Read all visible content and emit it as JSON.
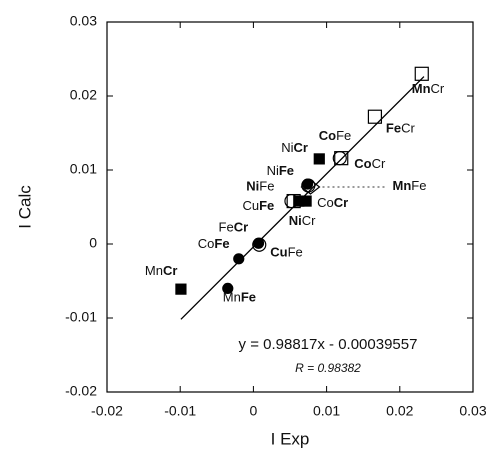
{
  "chart_data": {
    "type": "scatter",
    "x_label": "I Exp",
    "y_label": "I Calc",
    "xlim": [
      -0.02,
      0.03
    ],
    "ylim": [
      -0.02,
      0.03
    ],
    "xticks": [
      -0.02,
      -0.01,
      0,
      0.01,
      0.02,
      0.03
    ],
    "yticks": [
      -0.02,
      -0.01,
      0,
      0.01,
      0.02,
      0.03
    ],
    "color": "#000000",
    "fit": {
      "slope": 0.98817,
      "intercept": -0.00039557,
      "xlim": [
        -0.0099,
        0.0233
      ]
    },
    "equation": "y = 0.98817x - 0.00039557",
    "r_text": "R = 0.98382",
    "points": [
      {
        "x": -0.0099,
        "y": -0.0061,
        "marker": "square-filled",
        "label": [
          {
            "text": "Mn",
            "bold": false
          },
          {
            "text": "Cr",
            "bold": true
          }
        ]
      },
      {
        "x": -0.0035,
        "y": -0.006,
        "marker": "circle-filled",
        "label": [
          {
            "text": "Mn",
            "bold": false
          },
          {
            "text": "Fe",
            "bold": true
          }
        ]
      },
      {
        "x": -0.002,
        "y": -0.002,
        "marker": "circle-filled",
        "label": [
          {
            "text": "Co",
            "bold": false
          },
          {
            "text": "Fe",
            "bold": true
          }
        ]
      },
      {
        "x": 0.0007,
        "y": 0.0001,
        "marker": "circle-filled",
        "label": [
          {
            "text": "Fe",
            "bold": false
          },
          {
            "text": "Cr",
            "bold": true
          }
        ]
      },
      {
        "x": 0.0008,
        "y": -0.0001,
        "marker": "circle-open",
        "label": [
          {
            "text": "Cu",
            "bold": true
          },
          {
            "text": "Fe",
            "bold": false
          }
        ]
      },
      {
        "x": 0.0055,
        "y": 0.0058,
        "marker": "square-open"
      },
      {
        "x": 0.0052,
        "y": 0.0058,
        "marker": "circle-open",
        "label": [
          {
            "text": "Cu",
            "bold": false
          },
          {
            "text": "Fe",
            "bold": true
          }
        ]
      },
      {
        "x": 0.0062,
        "y": 0.0058,
        "marker": "square-filled",
        "label": [
          {
            "text": "Ni",
            "bold": true
          },
          {
            "text": "Cr",
            "bold": false
          }
        ]
      },
      {
        "x": 0.0072,
        "y": 0.0058,
        "marker": "square-filled",
        "label": [
          {
            "text": "Co",
            "bold": false
          },
          {
            "text": "Cr",
            "bold": true
          }
        ]
      },
      {
        "x": 0.0074,
        "y": 0.0081,
        "marker": "circle-filled",
        "label": [
          {
            "text": "Ni",
            "bold": false
          },
          {
            "text": "Fe",
            "bold": true
          }
        ]
      },
      {
        "x": 0.0078,
        "y": 0.0077,
        "marker": "diamond-open",
        "label": [
          {
            "text": "Mn",
            "bold": true
          },
          {
            "text": "Fe",
            "bold": false
          }
        ]
      },
      {
        "x": 0.0075,
        "y": 0.0079,
        "marker": "circle-open",
        "label": [
          {
            "text": "Ni",
            "bold": true
          },
          {
            "text": "Fe",
            "bold": false
          }
        ]
      },
      {
        "x": 0.009,
        "y": 0.0115,
        "marker": "square-filled",
        "label": [
          {
            "text": "Ni",
            "bold": false
          },
          {
            "text": "Cr",
            "bold": true
          }
        ]
      },
      {
        "x": 0.0118,
        "y": 0.0116,
        "marker": "circle-open",
        "label": [
          {
            "text": "Co",
            "bold": true
          },
          {
            "text": "Fe",
            "bold": false
          }
        ]
      },
      {
        "x": 0.012,
        "y": 0.0116,
        "marker": "square-open",
        "label": [
          {
            "text": "Co",
            "bold": true
          },
          {
            "text": "Cr",
            "bold": false
          }
        ]
      },
      {
        "x": 0.0166,
        "y": 0.0172,
        "marker": "square-open",
        "label": [
          {
            "text": "Fe",
            "bold": true
          },
          {
            "text": "Cr",
            "bold": false
          }
        ]
      },
      {
        "x": 0.023,
        "y": 0.023,
        "marker": "square-open",
        "label": [
          {
            "text": "Mn",
            "bold": true
          },
          {
            "text": "Cr",
            "bold": false
          }
        ]
      }
    ]
  }
}
